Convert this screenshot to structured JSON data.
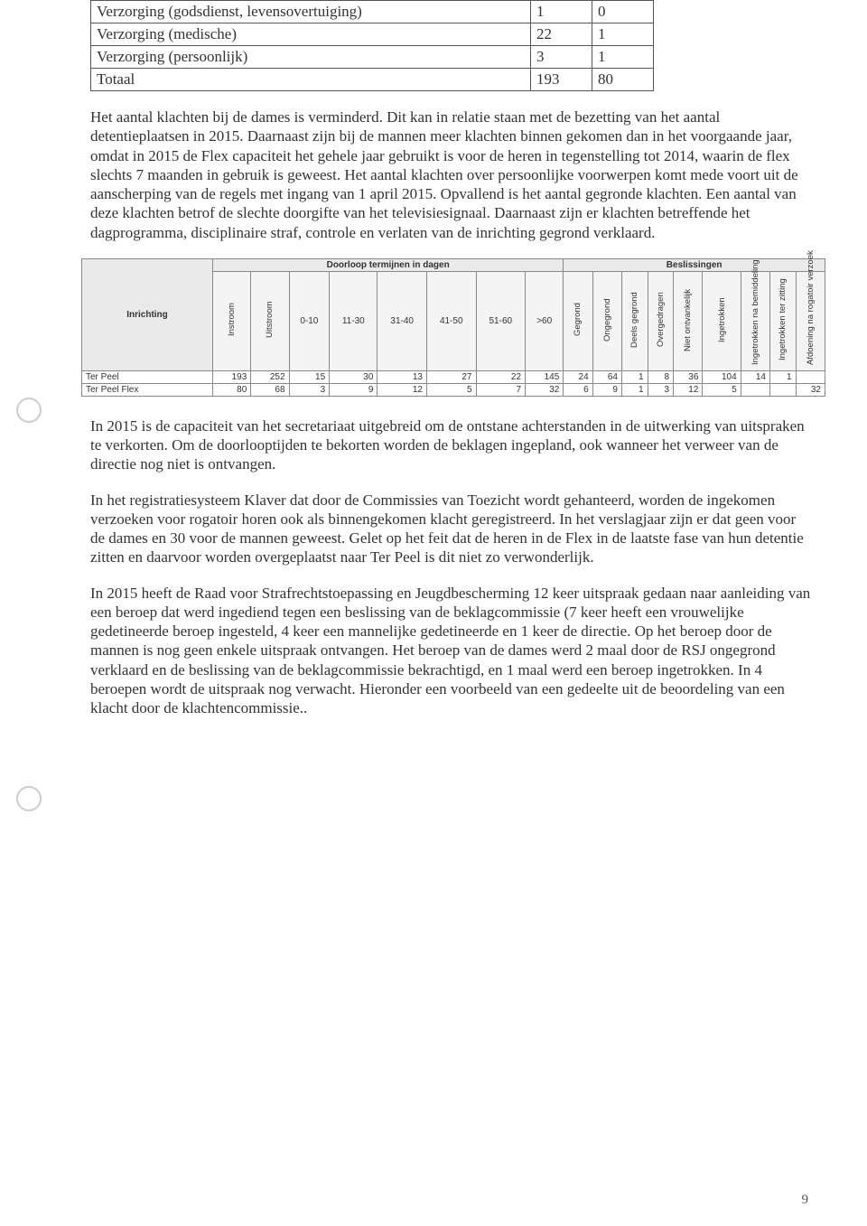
{
  "small_table": {
    "rows": [
      [
        "Verzorging (godsdienst, levensovertuiging)",
        "1",
        "0"
      ],
      [
        "Verzorging (medische)",
        "22",
        "1"
      ],
      [
        "Verzorging (persoonlijk)",
        "3",
        "1"
      ],
      [
        "Totaal",
        "193",
        "80"
      ]
    ]
  },
  "para1": "Het aantal klachten bij de dames is verminderd. Dit kan in relatie staan met de bezetting van het aantal detentieplaatsen in 2015. Daarnaast zijn bij de mannen meer klachten binnen gekomen dan in het voorgaande jaar, omdat in 2015 de Flex capaciteit het gehele jaar gebruikt is voor de heren in tegenstelling tot 2014, waarin de flex slechts 7 maanden in gebruik is geweest. Het aantal klachten over persoonlijke voorwerpen komt mede voort uit de aanscherping van de regels met ingang van 1 april 2015. Opvallend is het aantal gegronde klachten. Een aantal van deze klachten betrof de slechte doorgifte van het televisiesignaal. Daarnaast zijn er klachten betreffende het dagprogramma, disciplinaire straf, controle en verlaten van de inrichting gegrond verklaard.",
  "stats": {
    "header": {
      "inrichting": "Inrichting",
      "doorloop": "Doorloop termijnen in dagen",
      "beslissingen": "Beslissingen"
    },
    "sub": {
      "instroom": "Instroom",
      "uitstroom": "Uitstroom",
      "d0_10": "0-10",
      "d11_30": "11-30",
      "d31_40": "31-40",
      "d41_50": "41-50",
      "d51_60": "51-60",
      "d60p": ">60",
      "gegrond": "Gegrond",
      "ongegrond": "Ongegrond",
      "deelsgegrond": "Deels gegrond",
      "overgedragen": "Overgedragen",
      "nietontvankelijk": "Niet ontvankelijk",
      "ingetrokken": "Ingetrokken",
      "ingetrokken_bem": "Ingetrokken na bemiddeling",
      "ingetrokken_zit": "Ingetrokken ter zitting",
      "afdoening": "Afdoening na rogatoir verzoek"
    },
    "rows": [
      {
        "name": "Ter Peel",
        "vals": [
          "193",
          "252",
          "15",
          "30",
          "13",
          "27",
          "22",
          "145",
          "24",
          "64",
          "1",
          "8",
          "36",
          "104",
          "14",
          "1",
          ""
        ]
      },
      {
        "name": "Ter Peel Flex",
        "vals": [
          "80",
          "68",
          "3",
          "9",
          "12",
          "5",
          "7",
          "32",
          "6",
          "9",
          "1",
          "3",
          "12",
          "5",
          "",
          "",
          "32"
        ]
      }
    ]
  },
  "para2": "In 2015 is de capaciteit van het secretariaat uitgebreid om de ontstane achterstanden in de uitwerking van uitspraken te verkorten. Om de doorlooptijden te bekorten worden de beklagen ingepland, ook wanneer het verweer van de directie nog niet is ontvangen.",
  "para3": "In het registratiesysteem Klaver dat door de Commissies van Toezicht wordt gehanteerd, worden de ingekomen verzoeken voor rogatoir horen ook als binnengekomen klacht geregistreerd. In het verslagjaar zijn er dat geen voor de dames en 30 voor de mannen geweest. Gelet op het feit dat de heren in de Flex in de laatste fase van hun detentie zitten en daarvoor worden overgeplaatst naar Ter Peel is dit niet zo verwonderlijk.",
  "para4": "In 2015 heeft de Raad voor Strafrechtstoepassing en Jeugdbescherming 12 keer uitspraak gedaan naar aanleiding van een beroep dat werd ingediend tegen een beslissing van de beklagcommissie (7 keer heeft een vrouwelijke gedetineerde beroep ingesteld, 4 keer een mannelijke gedetineerde en 1 keer de directie. Op het beroep door de mannen is nog geen enkele uitspraak ontvangen. Het beroep van de dames werd 2 maal door de RSJ ongegrond verklaard en de beslissing van de beklagcommissie bekrachtigd, en 1 maal werd een beroep ingetrokken. In 4 beroepen wordt de uitspraak nog verwacht. Hieronder een voorbeeld van een gedeelte uit de beoordeling van een klacht door de klachtencommissie..",
  "page_number": "9"
}
